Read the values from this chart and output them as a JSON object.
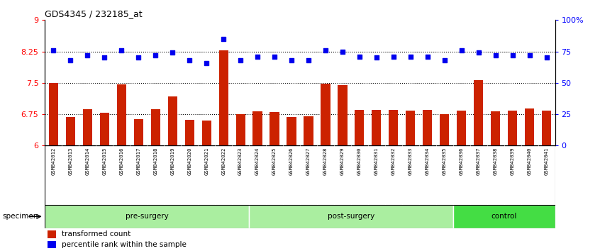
{
  "title": "GDS4345 / 232185_at",
  "samples": [
    "GSM842012",
    "GSM842013",
    "GSM842014",
    "GSM842015",
    "GSM842016",
    "GSM842017",
    "GSM842018",
    "GSM842019",
    "GSM842020",
    "GSM842021",
    "GSM842022",
    "GSM842023",
    "GSM842024",
    "GSM842025",
    "GSM842026",
    "GSM842027",
    "GSM842028",
    "GSM842029",
    "GSM842030",
    "GSM842031",
    "GSM842032",
    "GSM842033",
    "GSM842034",
    "GSM842035",
    "GSM842036",
    "GSM842037",
    "GSM842038",
    "GSM842039",
    "GSM842040",
    "GSM842041"
  ],
  "bar_values": [
    7.5,
    6.68,
    6.87,
    6.78,
    7.47,
    6.63,
    6.87,
    7.18,
    6.62,
    6.6,
    8.28,
    6.75,
    6.82,
    6.8,
    6.68,
    6.7,
    7.48,
    7.45,
    6.86,
    6.85,
    6.85,
    6.83,
    6.85,
    6.75,
    6.83,
    7.57,
    6.82,
    6.84,
    6.88,
    6.83
  ],
  "dot_values": [
    76,
    68,
    72,
    70,
    76,
    70,
    72,
    74,
    68,
    66,
    85,
    68,
    71,
    71,
    68,
    68,
    76,
    75,
    71,
    70,
    71,
    71,
    71,
    68,
    76,
    74,
    72,
    72,
    72,
    70
  ],
  "groups": [
    {
      "label": "pre-surgery",
      "start": 0,
      "end": 12,
      "light": true
    },
    {
      "label": "post-surgery",
      "start": 12,
      "end": 24,
      "light": true
    },
    {
      "label": "control",
      "start": 24,
      "end": 30,
      "light": false
    }
  ],
  "ylim_left": [
    6.0,
    9.0
  ],
  "ylim_right": [
    0,
    100
  ],
  "yticks_left": [
    6.0,
    6.75,
    7.5,
    8.25,
    9.0
  ],
  "ytick_labels_left": [
    "6",
    "6.75",
    "7.5",
    "8.25",
    "9"
  ],
  "yticks_right": [
    0,
    25,
    50,
    75,
    100
  ],
  "ytick_labels_right": [
    "0",
    "25",
    "50",
    "75",
    "100%"
  ],
  "hlines": [
    6.75,
    7.5,
    8.25
  ],
  "bar_color": "#CC2200",
  "dot_color": "#0000EE",
  "bar_width": 0.55,
  "group_light_color": "#aaeea0",
  "group_dark_color": "#44dd44",
  "legend_items": [
    {
      "label": "transformed count",
      "color": "#CC2200"
    },
    {
      "label": "percentile rank within the sample",
      "color": "#0000EE"
    }
  ],
  "specimen_label": "specimen"
}
